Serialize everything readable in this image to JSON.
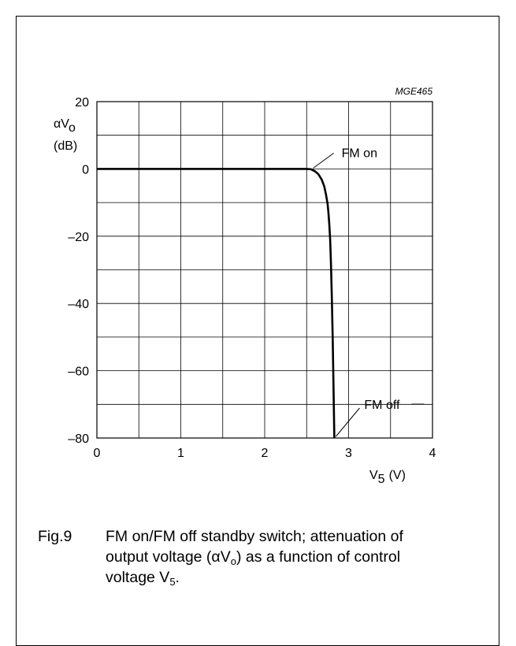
{
  "chart_data": {
    "type": "line",
    "code_label": "MGE465",
    "ylabel_main": "αV",
    "ylabel_sub": "o",
    "ylabel_unit": "(dB)",
    "xlabel_main": "V",
    "xlabel_sub": "5",
    "xlabel_unit": "(V)",
    "xlim": [
      0,
      4
    ],
    "ylim": [
      -80,
      20
    ],
    "xticks": [
      0,
      1,
      2,
      3,
      4
    ],
    "yticks": [
      20,
      0,
      -20,
      -40,
      -60,
      -80
    ],
    "ytick_labels": [
      "20",
      "0",
      "–20",
      "–40",
      "–60",
      "–80"
    ],
    "grid": true,
    "series": [
      {
        "x": [
          0,
          2.4,
          2.5,
          2.55,
          2.6,
          2.64,
          2.68,
          2.71,
          2.73,
          2.75,
          2.76,
          2.77,
          2.78,
          2.79,
          2.8,
          2.81,
          2.82,
          2.83
        ],
        "y": [
          0,
          0,
          0,
          -0.1,
          -0.7,
          -1.6,
          -3.2,
          -5.2,
          -7.5,
          -10.5,
          -13,
          -16.5,
          -21,
          -28,
          -38,
          -50,
          -64,
          -80
        ]
      }
    ],
    "annotations": [
      {
        "text": "FM on",
        "x": 2.56,
        "y": 0
      },
      {
        "text": "FM off",
        "x": 2.83,
        "y": -80
      }
    ]
  },
  "caption": {
    "number": "Fig.9",
    "line1": "FM on/FM off standby switch; attenuation of",
    "line2_pre": "output voltage (αV",
    "line2_sub": "o",
    "line2_post": ") as a function of control",
    "line3_pre": "voltage V",
    "line3_sub": "5",
    "line3_post": "."
  }
}
